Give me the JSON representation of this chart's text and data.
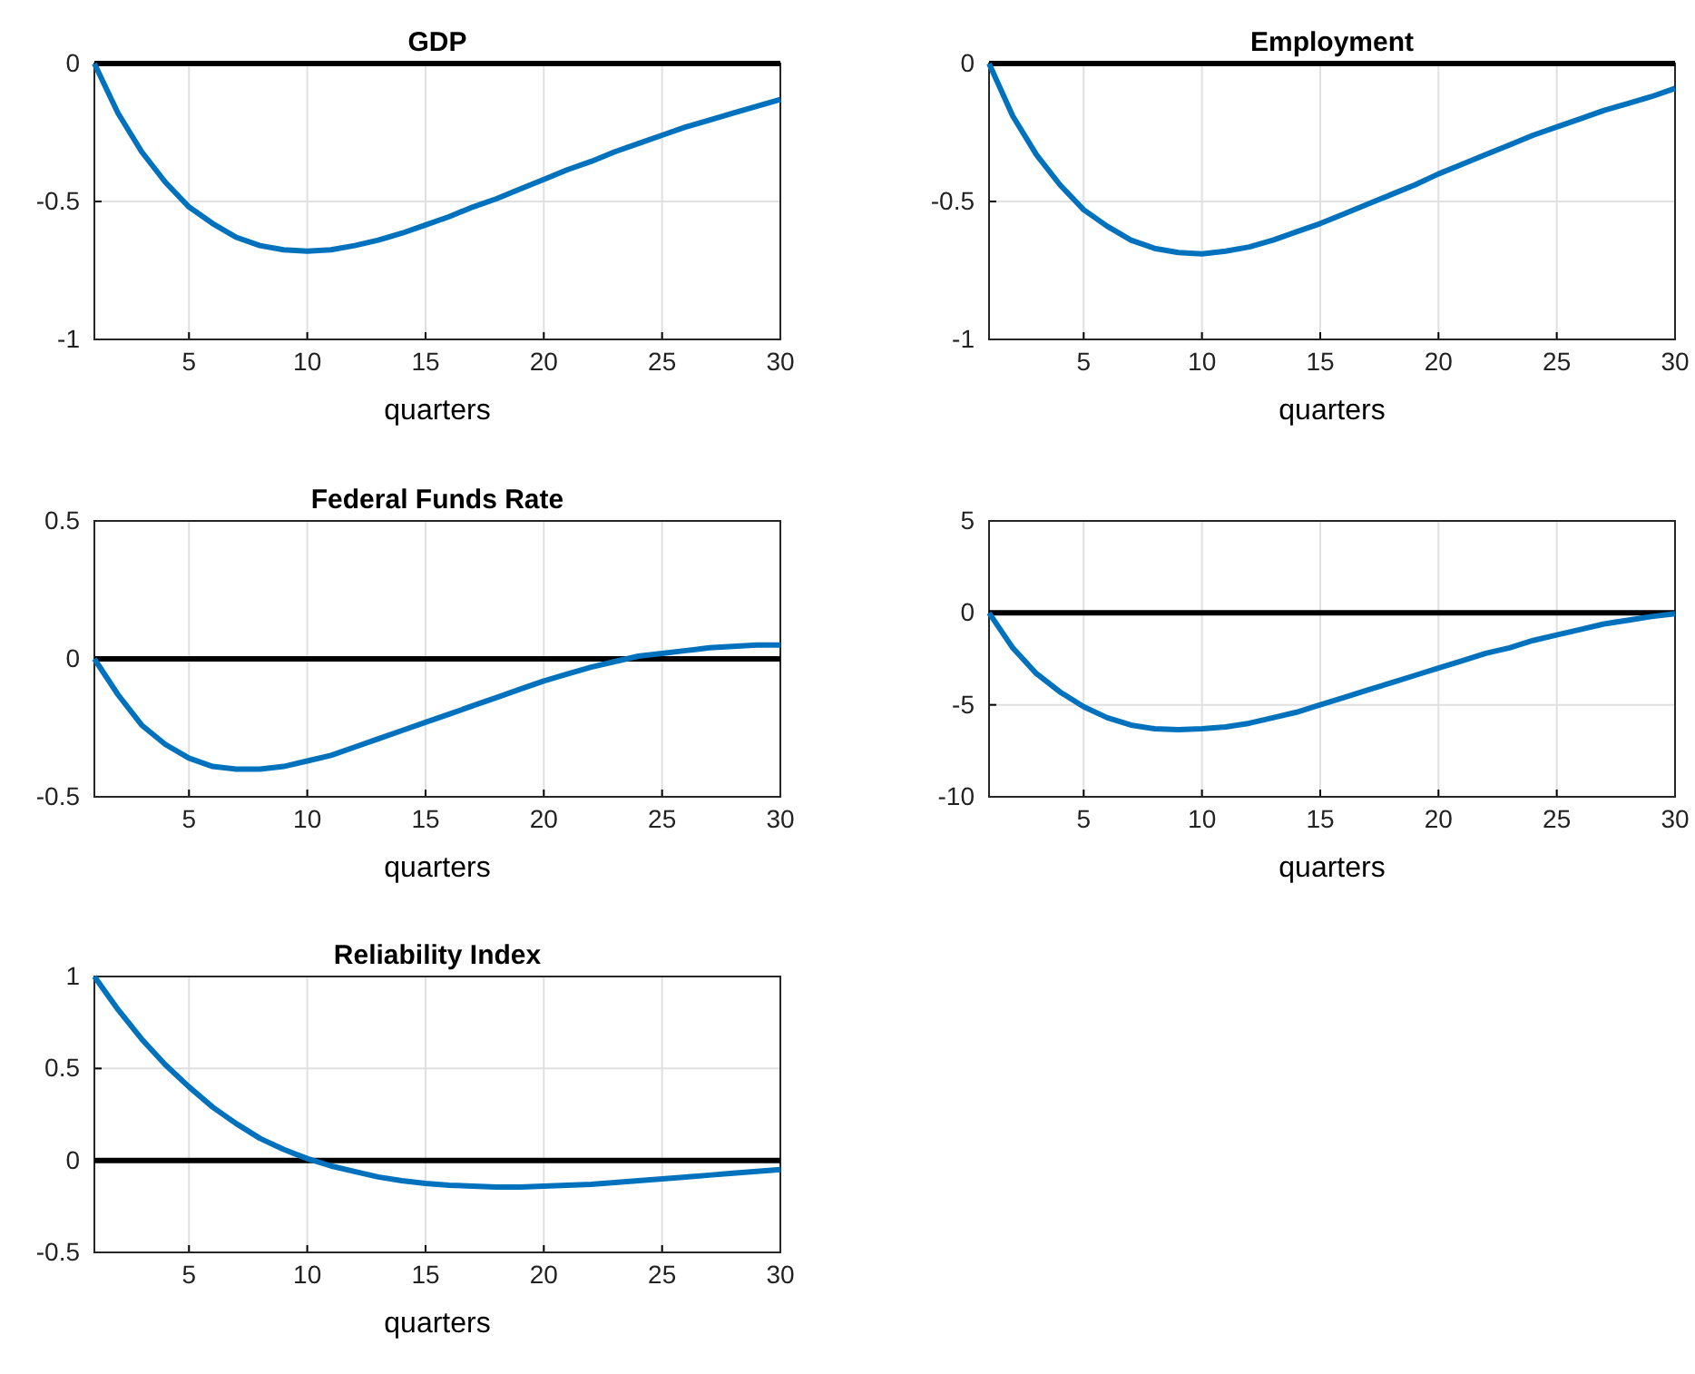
{
  "chart_data": [
    {
      "type": "line",
      "title": "GDP",
      "xlabel": "quarters",
      "x": [
        1,
        2,
        3,
        4,
        5,
        6,
        7,
        8,
        9,
        10,
        11,
        12,
        13,
        14,
        15,
        16,
        17,
        18,
        19,
        20,
        21,
        22,
        23,
        24,
        25,
        26,
        27,
        28,
        29,
        30
      ],
      "series": [
        {
          "color": "#0072bd",
          "values": [
            0,
            -0.18,
            -0.32,
            -0.43,
            -0.52,
            -0.58,
            -0.63,
            -0.66,
            -0.675,
            -0.68,
            -0.675,
            -0.66,
            -0.64,
            -0.615,
            -0.585,
            -0.555,
            -0.52,
            -0.49,
            -0.455,
            -0.42,
            -0.385,
            -0.355,
            -0.32,
            -0.29,
            -0.26,
            -0.23,
            -0.205,
            -0.18,
            -0.155,
            -0.13
          ]
        }
      ],
      "xlim": [
        1,
        30
      ],
      "xticks": [
        5,
        10,
        15,
        20,
        25,
        30
      ],
      "ylim": [
        -1,
        0
      ],
      "yticks": [
        -1,
        -0.5,
        0
      ],
      "grid": true,
      "ref_lines": [
        {
          "axis": "y",
          "value": 0,
          "color": "#000000"
        }
      ]
    },
    {
      "type": "line",
      "title": "Employment",
      "xlabel": "quarters",
      "x": [
        1,
        2,
        3,
        4,
        5,
        6,
        7,
        8,
        9,
        10,
        11,
        12,
        13,
        14,
        15,
        16,
        17,
        18,
        19,
        20,
        21,
        22,
        23,
        24,
        25,
        26,
        27,
        28,
        29,
        30
      ],
      "series": [
        {
          "color": "#0072bd",
          "values": [
            0,
            -0.19,
            -0.33,
            -0.44,
            -0.53,
            -0.59,
            -0.64,
            -0.67,
            -0.685,
            -0.69,
            -0.68,
            -0.665,
            -0.64,
            -0.61,
            -0.58,
            -0.545,
            -0.51,
            -0.475,
            -0.44,
            -0.4,
            -0.365,
            -0.33,
            -0.295,
            -0.26,
            -0.23,
            -0.2,
            -0.17,
            -0.145,
            -0.12,
            -0.09
          ]
        }
      ],
      "xlim": [
        1,
        30
      ],
      "xticks": [
        5,
        10,
        15,
        20,
        25,
        30
      ],
      "ylim": [
        -1,
        0
      ],
      "yticks": [
        -1,
        -0.5,
        0
      ],
      "grid": true,
      "ref_lines": [
        {
          "axis": "y",
          "value": 0,
          "color": "#000000"
        }
      ]
    },
    {
      "type": "line",
      "title": "Federal Funds Rate",
      "xlabel": "quarters",
      "x": [
        1,
        2,
        3,
        4,
        5,
        6,
        7,
        8,
        9,
        10,
        11,
        12,
        13,
        14,
        15,
        16,
        17,
        18,
        19,
        20,
        21,
        22,
        23,
        24,
        25,
        26,
        27,
        28,
        29,
        30
      ],
      "series": [
        {
          "color": "#0072bd",
          "values": [
            0,
            -0.13,
            -0.24,
            -0.31,
            -0.36,
            -0.39,
            -0.4,
            -0.4,
            -0.39,
            -0.37,
            -0.35,
            -0.32,
            -0.29,
            -0.26,
            -0.23,
            -0.2,
            -0.17,
            -0.14,
            -0.11,
            -0.08,
            -0.055,
            -0.03,
            -0.01,
            0.01,
            0.02,
            0.03,
            0.04,
            0.045,
            0.05,
            0.05
          ]
        }
      ],
      "xlim": [
        1,
        30
      ],
      "xticks": [
        5,
        10,
        15,
        20,
        25,
        30
      ],
      "ylim": [
        -0.5,
        0.5
      ],
      "yticks": [
        -0.5,
        0,
        0.5
      ],
      "grid": true,
      "ref_lines": [
        {
          "axis": "y",
          "value": 0,
          "color": "#000000"
        }
      ]
    },
    {
      "type": "line",
      "xlabel": "quarters",
      "x": [
        1,
        2,
        3,
        4,
        5,
        6,
        7,
        8,
        9,
        10,
        11,
        12,
        13,
        14,
        15,
        16,
        17,
        18,
        19,
        20,
        21,
        22,
        23,
        24,
        25,
        26,
        27,
        28,
        29,
        30
      ],
      "series": [
        {
          "color": "#0072bd",
          "values": [
            0,
            -1.9,
            -3.3,
            -4.3,
            -5.1,
            -5.7,
            -6.1,
            -6.3,
            -6.35,
            -6.3,
            -6.2,
            -6,
            -5.7,
            -5.4,
            -5,
            -4.6,
            -4.2,
            -3.8,
            -3.4,
            -3,
            -2.6,
            -2.2,
            -1.9,
            -1.5,
            -1.2,
            -0.9,
            -0.6,
            -0.4,
            -0.2,
            -0.05
          ]
        }
      ],
      "xlim": [
        1,
        30
      ],
      "xticks": [
        5,
        10,
        15,
        20,
        25,
        30
      ],
      "ylim": [
        -10,
        5
      ],
      "yticks": [
        -10,
        -5,
        0,
        5
      ],
      "grid": true,
      "ref_lines": [
        {
          "axis": "y",
          "value": 0,
          "color": "#000000"
        }
      ]
    },
    {
      "type": "line",
      "title": "Reliability Index",
      "xlabel": "quarters",
      "x": [
        1,
        2,
        3,
        4,
        5,
        6,
        7,
        8,
        9,
        10,
        11,
        12,
        13,
        14,
        15,
        16,
        17,
        18,
        19,
        20,
        21,
        22,
        23,
        24,
        25,
        26,
        27,
        28,
        29,
        30
      ],
      "series": [
        {
          "color": "#0072bd",
          "values": [
            1,
            0.82,
            0.66,
            0.52,
            0.4,
            0.29,
            0.2,
            0.12,
            0.06,
            0.01,
            -0.03,
            -0.06,
            -0.09,
            -0.11,
            -0.125,
            -0.135,
            -0.14,
            -0.145,
            -0.145,
            -0.14,
            -0.135,
            -0.13,
            -0.12,
            -0.11,
            -0.1,
            -0.09,
            -0.08,
            -0.07,
            -0.06,
            -0.05
          ]
        }
      ],
      "xlim": [
        1,
        30
      ],
      "xticks": [
        5,
        10,
        15,
        20,
        25,
        30
      ],
      "ylim": [
        -0.5,
        1
      ],
      "yticks": [
        -0.5,
        0,
        0.5,
        1
      ],
      "grid": true,
      "ref_lines": [
        {
          "axis": "y",
          "value": 0,
          "color": "#000000"
        }
      ]
    }
  ]
}
